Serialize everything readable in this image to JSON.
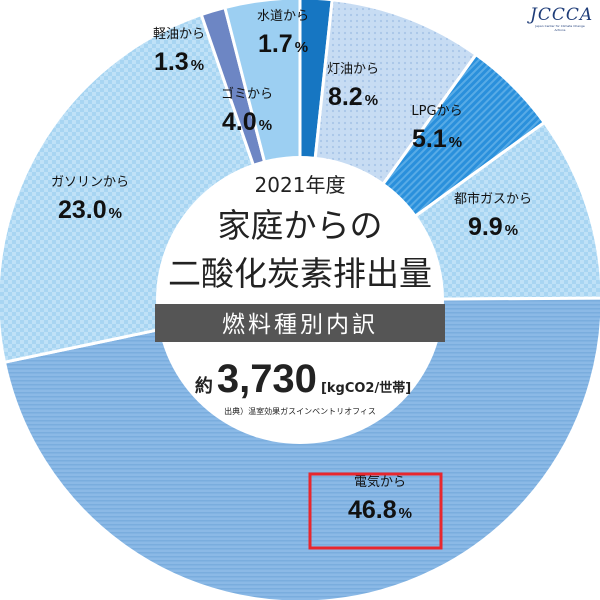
{
  "logo": {
    "text": "JCCCA",
    "subtitle": "Japan Center for Climate Change Actions"
  },
  "center": {
    "year": "2021年度",
    "title_line1": "家庭からの",
    "title_line2": "二酸化炭素排出量",
    "subtitle": "燃料種別内訳",
    "total_prefix": "約",
    "total_value": "3,730",
    "total_unit": "[kgCO2/世帯]",
    "source": "出典）温室効果ガスインベントリオフィス"
  },
  "highlight_color": "#e8272e",
  "chart_data": {
    "type": "pie",
    "donut": true,
    "start_direction": "top",
    "direction": "clockwise",
    "slices": [
      {
        "label": "水道から",
        "value": 1.7,
        "value_text": "1.7",
        "unit": "%",
        "color": "#1676c2",
        "pattern": "stripes-diagonal"
      },
      {
        "label": "灯油から",
        "value": 8.2,
        "value_text": "8.2",
        "unit": "%",
        "color": "#c7dcf3",
        "pattern": "dots"
      },
      {
        "label": "LPGから",
        "value": 5.1,
        "value_text": "5.1",
        "unit": "%",
        "color": "#2a90dc",
        "pattern": "stripes-diagonal"
      },
      {
        "label": "都市ガスから",
        "value": 9.9,
        "value_text": "9.9",
        "unit": "%",
        "color": "#a8d5f2",
        "pattern": "checker"
      },
      {
        "label": "電気から",
        "value": 46.8,
        "value_text": "46.8",
        "unit": "%",
        "color": "#8bb9e6",
        "pattern": "stripes-horizontal"
      },
      {
        "label": "ガソリンから",
        "value": 23.0,
        "value_text": "23.0",
        "unit": "%",
        "color": "#a7d0f1",
        "pattern": "checker"
      },
      {
        "label": "軽油から",
        "value": 1.3,
        "value_text": "1.3",
        "unit": "%",
        "color": "#6d86c4",
        "pattern": "stripes-diagonal"
      },
      {
        "label": "ゴミから",
        "value": 4.0,
        "value_text": "4.0",
        "unit": "%",
        "color": "#9ccff2",
        "pattern": "solid"
      }
    ],
    "highlighted": "電気から"
  }
}
